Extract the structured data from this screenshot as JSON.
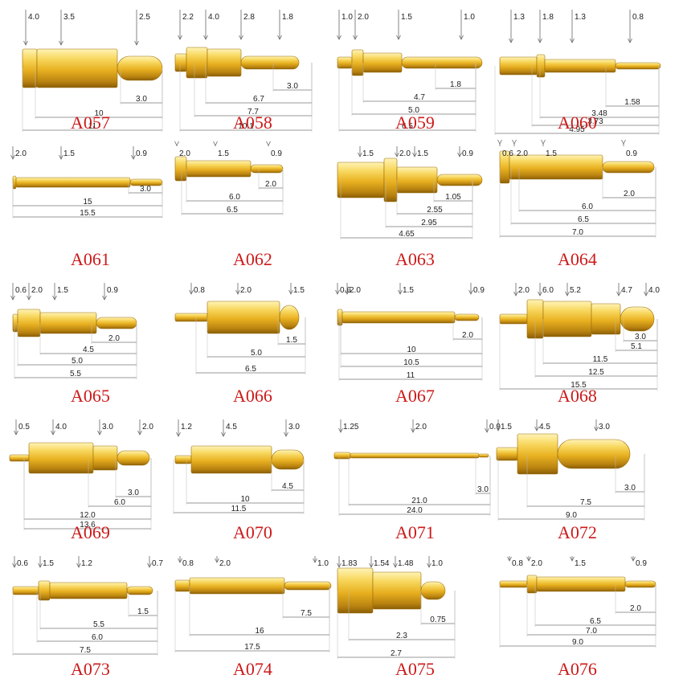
{
  "colors": {
    "gold_light": "#f8e27a",
    "gold_mid": "#e8b620",
    "gold_dark": "#a8780a",
    "label_red": "#cc1a1a",
    "line_gray": "#888888"
  },
  "products": [
    {
      "code": "A057",
      "top": [
        "4.0",
        "3.5",
        "2.5"
      ],
      "bottom": [
        "3.0",
        "10",
        "11"
      ]
    },
    {
      "code": "A058",
      "top": [
        "2.2",
        "4.0",
        "2.8",
        "1.8"
      ],
      "bottom": [
        "3.0",
        "6.7",
        "7.7",
        "10.1"
      ]
    },
    {
      "code": "A059",
      "top": [
        "1.0",
        "2.0",
        "1.5",
        "1.0"
      ],
      "bottom": [
        "1.8",
        "4.7",
        "5.0",
        "6.5"
      ]
    },
    {
      "code": "A060",
      "top": [
        "1.3",
        "1.8",
        "1.3",
        "0.8"
      ],
      "bottom": [
        "1.58",
        "3.48",
        "3.73",
        "4.95"
      ]
    },
    {
      "code": "A061",
      "top": [
        "2.0",
        "1.5",
        "0.9"
      ],
      "bottom": [
        "3.0",
        "15",
        "15.5"
      ]
    },
    {
      "code": "A062",
      "top": [
        "2.0",
        "1.5",
        "0.9"
      ],
      "bottom": [
        "2.0",
        "6.0",
        "6.5"
      ]
    },
    {
      "code": "A063",
      "top": [
        "1.5",
        "2.0",
        "1.5",
        "0.9"
      ],
      "bottom": [
        "1.05",
        "2.55",
        "2.95",
        "4.65"
      ]
    },
    {
      "code": "A064",
      "top": [
        "0.6",
        "2.0",
        "1.5",
        "0.9"
      ],
      "bottom": [
        "2.0",
        "6.0",
        "6.5",
        "7.0"
      ]
    },
    {
      "code": "A065",
      "top": [
        "0.6",
        "2.0",
        "1.5",
        "0.9"
      ],
      "bottom": [
        "2.0",
        "4.5",
        "5.0",
        "5.5"
      ]
    },
    {
      "code": "A066",
      "top": [
        "0.8",
        "2.0",
        "1.5"
      ],
      "bottom": [
        "1.5",
        "5.0",
        "6.5"
      ]
    },
    {
      "code": "A067",
      "top": [
        "0.6",
        "2.0",
        "1.5",
        "0.9"
      ],
      "bottom": [
        "2.0",
        "10",
        "10.5",
        "11"
      ]
    },
    {
      "code": "A068",
      "top": [
        "2.0",
        "6.0",
        "5.2",
        "4.7",
        "4.0"
      ],
      "bottom": [
        "3.0",
        "5.1",
        "11.5",
        "12.5",
        "15.5"
      ]
    },
    {
      "code": "A069",
      "top": [
        "0.5",
        "4.0",
        "3.0",
        "2.0"
      ],
      "bottom": [
        "3.0",
        "6.0",
        "12.0",
        "13.6"
      ]
    },
    {
      "code": "A070",
      "top": [
        "1.2",
        "4.5",
        "3.0"
      ],
      "bottom": [
        "4.5",
        "10",
        "11.5"
      ]
    },
    {
      "code": "A071",
      "top": [
        "1.25",
        "2.0",
        "0.9"
      ],
      "bottom": [
        "3.0",
        "21.0",
        "24.0"
      ]
    },
    {
      "code": "A072",
      "top": [
        "1.5",
        "4.5",
        "3.0"
      ],
      "bottom": [
        "3.0",
        "7.5",
        "9.0"
      ]
    },
    {
      "code": "A073",
      "top": [
        "0.6",
        "1.5",
        "1.2",
        "0.7"
      ],
      "bottom": [
        "1.5",
        "5.5",
        "6.0",
        "7.5"
      ]
    },
    {
      "code": "A074",
      "top": [
        "0.8",
        "2.0",
        "1.0"
      ],
      "bottom": [
        "7.5",
        "16",
        "17.5"
      ]
    },
    {
      "code": "A075",
      "top": [
        "1.83",
        "1.54",
        "1.48",
        "1.0"
      ],
      "bottom": [
        "0.75",
        "2.3",
        "2.7"
      ]
    },
    {
      "code": "A076",
      "top": [
        "0.8",
        "2.0",
        "1.5",
        "0.9"
      ],
      "bottom": [
        "2.0",
        "6.5",
        "7.0",
        "9.0"
      ]
    }
  ]
}
